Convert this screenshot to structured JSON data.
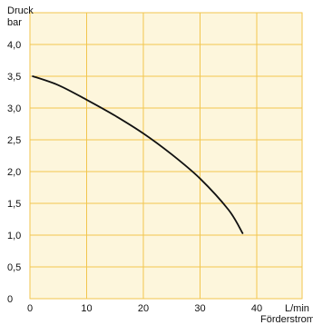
{
  "chart_data": {
    "type": "line",
    "ylabel_line1": "Druck",
    "ylabel_line2": "bar",
    "x_unit": "L/min",
    "xlabel": "Förderstrom",
    "xlim": [
      0,
      48
    ],
    "ylim": [
      0,
      4.5
    ],
    "x_ticks": [
      "0",
      "10",
      "20",
      "30",
      "40"
    ],
    "x_tick_values": [
      0,
      10,
      20,
      30,
      40
    ],
    "y_ticks": [
      "0",
      "0,5",
      "1,0",
      "1,5",
      "2,0",
      "2,5",
      "3,0",
      "3,5",
      "4,0"
    ],
    "y_tick_values": [
      0,
      0.5,
      1.0,
      1.5,
      2.0,
      2.5,
      3.0,
      3.5,
      4.0
    ],
    "x_grid": [
      0,
      10,
      20,
      30,
      40,
      48
    ],
    "y_grid": [
      0,
      0.5,
      1.0,
      1.5,
      2.0,
      2.5,
      3.0,
      3.5,
      4.0,
      4.5
    ],
    "grid": true,
    "series": [
      {
        "x": [
          0.5,
          5,
          10,
          15,
          20,
          25,
          30,
          35,
          37.5
        ],
        "y": [
          3.5,
          3.36,
          3.13,
          2.88,
          2.6,
          2.27,
          1.89,
          1.4,
          1.03
        ]
      }
    ],
    "colors": {
      "plot_background": "#fdf6dc",
      "grid": "#f2c64e",
      "line": "#111111"
    }
  }
}
